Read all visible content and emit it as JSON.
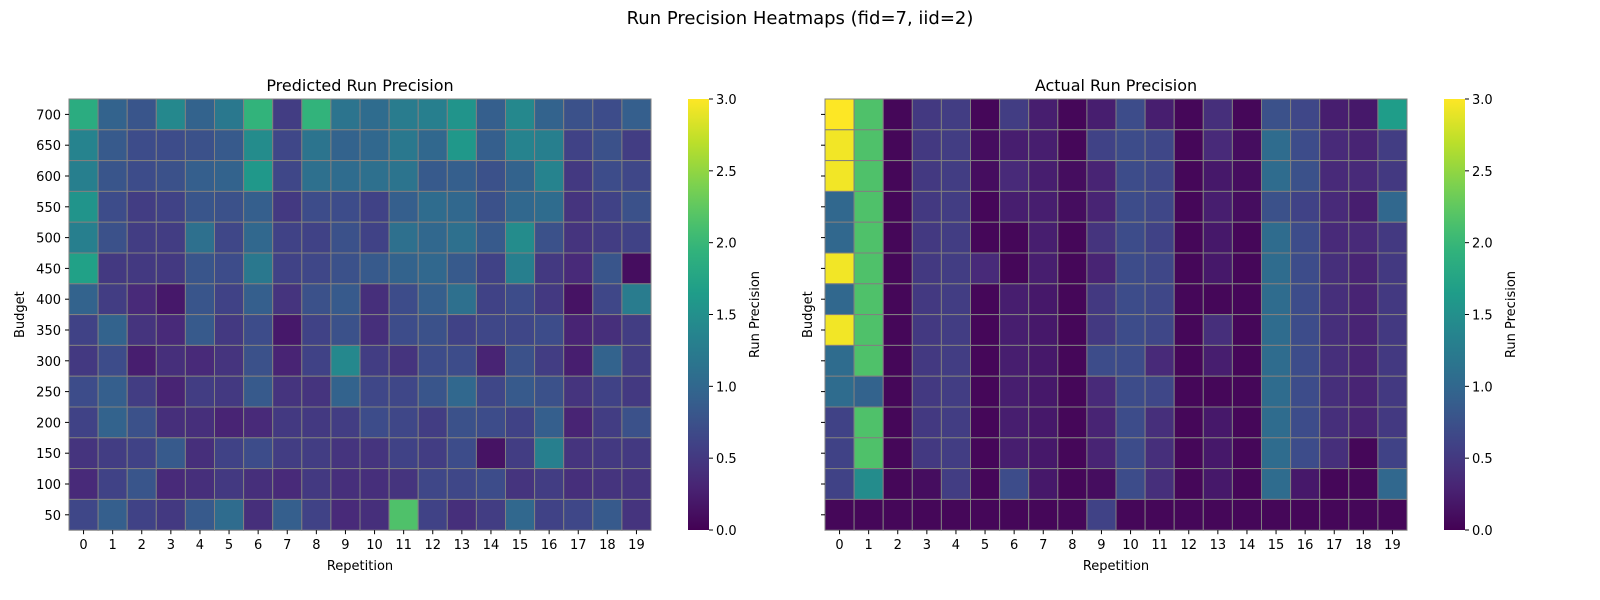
{
  "suptitle": "Run Precision Heatmaps (fid=7, iid=2)",
  "chart_data": [
    {
      "type": "heatmap",
      "title": "Predicted Run Precision",
      "xlabel": "Repetition",
      "ylabel": "Budget",
      "colorbar_label": "Run Precision",
      "colormap": "viridis",
      "vmin": 0,
      "vmax": 3,
      "colorbar_ticks": [
        "0.0",
        "0.5",
        "1.0",
        "1.5",
        "2.0",
        "2.5",
        "3.0"
      ],
      "x_categories": [
        "0",
        "1",
        "2",
        "3",
        "4",
        "5",
        "6",
        "7",
        "8",
        "9",
        "10",
        "11",
        "12",
        "13",
        "14",
        "15",
        "16",
        "17",
        "18",
        "19"
      ],
      "y_categories": [
        "700",
        "650",
        "600",
        "550",
        "500",
        "450",
        "400",
        "350",
        "300",
        "250",
        "200",
        "150",
        "100",
        "50"
      ],
      "values": [
        [
          1.85,
          0.95,
          0.8,
          1.4,
          0.95,
          1.2,
          1.95,
          0.55,
          1.95,
          1.15,
          1.05,
          1.25,
          1.3,
          1.55,
          0.9,
          1.4,
          0.95,
          0.75,
          0.7,
          0.9
        ],
        [
          1.35,
          0.85,
          0.7,
          0.7,
          0.75,
          0.85,
          1.45,
          0.65,
          1.15,
          0.95,
          1.0,
          1.2,
          1.0,
          1.6,
          0.9,
          1.35,
          1.3,
          0.6,
          0.75,
          0.55
        ],
        [
          1.3,
          0.8,
          0.7,
          0.75,
          0.9,
          0.95,
          1.6,
          0.65,
          1.1,
          1.05,
          1.1,
          1.15,
          0.85,
          0.9,
          0.75,
          0.95,
          1.35,
          0.5,
          0.7,
          0.65
        ],
        [
          1.55,
          0.7,
          0.55,
          0.6,
          0.8,
          0.75,
          0.9,
          0.5,
          0.7,
          0.7,
          0.6,
          0.9,
          1.05,
          1.0,
          0.75,
          1.0,
          1.05,
          0.45,
          0.6,
          0.75
        ],
        [
          1.3,
          0.75,
          0.55,
          0.55,
          1.1,
          0.65,
          1.0,
          0.6,
          0.6,
          0.75,
          0.6,
          1.1,
          1.0,
          1.1,
          0.85,
          1.45,
          0.75,
          0.45,
          0.55,
          0.6
        ],
        [
          1.7,
          0.5,
          0.5,
          0.5,
          0.8,
          0.7,
          1.2,
          0.6,
          0.65,
          0.75,
          0.85,
          0.95,
          1.0,
          0.85,
          0.6,
          1.3,
          0.5,
          0.35,
          0.8,
          0.1
        ],
        [
          0.95,
          0.55,
          0.35,
          0.2,
          0.8,
          0.6,
          0.9,
          0.45,
          0.75,
          0.85,
          0.4,
          0.7,
          0.9,
          1.1,
          0.6,
          0.7,
          0.5,
          0.15,
          0.65,
          1.25
        ],
        [
          0.6,
          0.95,
          0.45,
          0.35,
          0.85,
          0.5,
          0.7,
          0.2,
          0.6,
          0.75,
          0.4,
          0.7,
          0.75,
          0.6,
          0.65,
          0.65,
          0.7,
          0.3,
          0.4,
          0.55
        ],
        [
          0.5,
          0.7,
          0.25,
          0.4,
          0.35,
          0.45,
          0.75,
          0.3,
          0.6,
          1.4,
          0.55,
          0.45,
          0.7,
          0.7,
          0.3,
          0.75,
          0.55,
          0.25,
          0.95,
          0.55
        ],
        [
          0.7,
          0.9,
          0.55,
          0.3,
          0.55,
          0.5,
          0.85,
          0.45,
          0.45,
          0.95,
          0.65,
          0.65,
          0.8,
          1.0,
          0.65,
          0.85,
          0.75,
          0.45,
          0.6,
          0.5
        ],
        [
          0.6,
          0.95,
          0.75,
          0.4,
          0.4,
          0.3,
          0.35,
          0.5,
          0.5,
          0.55,
          0.7,
          0.65,
          0.55,
          0.75,
          0.7,
          0.6,
          0.9,
          0.3,
          0.55,
          0.75
        ],
        [
          0.45,
          0.55,
          0.6,
          0.85,
          0.4,
          0.6,
          0.7,
          0.55,
          0.55,
          0.45,
          0.45,
          0.6,
          0.55,
          0.7,
          0.15,
          0.55,
          1.3,
          0.45,
          0.5,
          0.5
        ],
        [
          0.35,
          0.6,
          0.8,
          0.35,
          0.4,
          0.5,
          0.4,
          0.35,
          0.5,
          0.4,
          0.4,
          0.45,
          0.65,
          0.65,
          0.7,
          0.45,
          0.55,
          0.4,
          0.45,
          0.45
        ],
        [
          0.65,
          0.9,
          0.6,
          0.5,
          0.85,
          1.05,
          0.4,
          0.9,
          0.6,
          0.35,
          0.4,
          2.15,
          0.6,
          0.4,
          0.55,
          1.0,
          0.6,
          0.65,
          0.85,
          0.45
        ]
      ]
    },
    {
      "type": "heatmap",
      "title": "Actual Run Precision",
      "xlabel": "Repetition",
      "ylabel": "Budget",
      "colorbar_label": "Run Precision",
      "colormap": "viridis",
      "vmin": 0,
      "vmax": 3,
      "colorbar_ticks": [
        "0.0",
        "0.5",
        "1.0",
        "1.5",
        "2.0",
        "2.5",
        "3.0"
      ],
      "x_categories": [
        "0",
        "1",
        "2",
        "3",
        "4",
        "5",
        "6",
        "7",
        "8",
        "9",
        "10",
        "11",
        "12",
        "13",
        "14",
        "15",
        "16",
        "17",
        "18",
        "19"
      ],
      "y_categories": [
        "700",
        "650",
        "600",
        "550",
        "500",
        "450",
        "400",
        "350",
        "300",
        "250",
        "200",
        "150",
        "100",
        "50"
      ],
      "values": [
        [
          3.0,
          2.15,
          0.05,
          0.5,
          0.55,
          0.05,
          0.55,
          0.25,
          0.05,
          0.25,
          0.7,
          0.25,
          0.05,
          0.4,
          0.05,
          0.75,
          0.65,
          0.25,
          0.2,
          1.65
        ],
        [
          2.95,
          2.15,
          0.05,
          0.5,
          0.55,
          0.1,
          0.25,
          0.25,
          0.05,
          0.6,
          0.7,
          0.65,
          0.05,
          0.35,
          0.1,
          1.05,
          0.7,
          0.35,
          0.3,
          0.55
        ],
        [
          2.95,
          2.15,
          0.05,
          0.5,
          0.55,
          0.1,
          0.35,
          0.25,
          0.1,
          0.3,
          0.7,
          0.65,
          0.05,
          0.2,
          0.1,
          1.05,
          0.75,
          0.35,
          0.35,
          0.5
        ],
        [
          1.0,
          2.15,
          0.05,
          0.5,
          0.55,
          0.05,
          0.25,
          0.25,
          0.1,
          0.3,
          0.7,
          0.65,
          0.05,
          0.25,
          0.1,
          0.75,
          0.6,
          0.35,
          0.25,
          1.0
        ],
        [
          1.0,
          2.15,
          0.05,
          0.5,
          0.55,
          0.05,
          0.05,
          0.25,
          0.05,
          0.45,
          0.7,
          0.6,
          0.05,
          0.2,
          0.05,
          1.05,
          0.7,
          0.35,
          0.35,
          0.5
        ],
        [
          2.95,
          2.15,
          0.05,
          0.5,
          0.55,
          0.35,
          0.05,
          0.25,
          0.05,
          0.3,
          0.7,
          0.65,
          0.05,
          0.2,
          0.05,
          1.05,
          0.7,
          0.4,
          0.3,
          0.5
        ],
        [
          1.0,
          2.15,
          0.05,
          0.5,
          0.55,
          0.05,
          0.25,
          0.2,
          0.05,
          0.5,
          0.7,
          0.65,
          0.05,
          0.05,
          0.05,
          1.05,
          0.7,
          0.4,
          0.3,
          0.5
        ],
        [
          2.95,
          2.15,
          0.05,
          0.5,
          0.55,
          0.05,
          0.25,
          0.2,
          0.05,
          0.5,
          0.7,
          0.65,
          0.05,
          0.4,
          0.05,
          1.05,
          0.7,
          0.4,
          0.3,
          0.5
        ],
        [
          1.05,
          2.15,
          0.05,
          0.5,
          0.55,
          0.05,
          0.25,
          0.2,
          0.05,
          0.7,
          0.7,
          0.35,
          0.05,
          0.25,
          0.05,
          1.05,
          0.7,
          0.4,
          0.3,
          0.5
        ],
        [
          1.05,
          0.95,
          0.05,
          0.5,
          0.55,
          0.05,
          0.25,
          0.2,
          0.05,
          0.35,
          0.7,
          0.65,
          0.05,
          0.05,
          0.05,
          1.05,
          0.7,
          0.4,
          0.3,
          0.5
        ],
        [
          0.6,
          2.15,
          0.05,
          0.5,
          0.55,
          0.05,
          0.25,
          0.2,
          0.05,
          0.3,
          0.7,
          0.4,
          0.05,
          0.2,
          0.05,
          1.05,
          0.7,
          0.4,
          0.3,
          0.5
        ],
        [
          0.6,
          2.15,
          0.05,
          0.5,
          0.55,
          0.05,
          0.25,
          0.2,
          0.05,
          0.3,
          0.7,
          0.4,
          0.05,
          0.2,
          0.05,
          1.05,
          0.7,
          0.4,
          0.05,
          0.6
        ],
        [
          0.6,
          1.45,
          0.05,
          0.1,
          0.55,
          0.05,
          0.7,
          0.2,
          0.05,
          0.1,
          0.7,
          0.4,
          0.05,
          0.2,
          0.05,
          1.05,
          0.2,
          0.05,
          0.05,
          1.0
        ],
        [
          0.05,
          0.05,
          0.05,
          0.05,
          0.05,
          0.05,
          0.05,
          0.05,
          0.05,
          0.6,
          0.05,
          0.05,
          0.05,
          0.05,
          0.05,
          0.05,
          0.05,
          0.05,
          0.05,
          0.05
        ]
      ]
    }
  ]
}
